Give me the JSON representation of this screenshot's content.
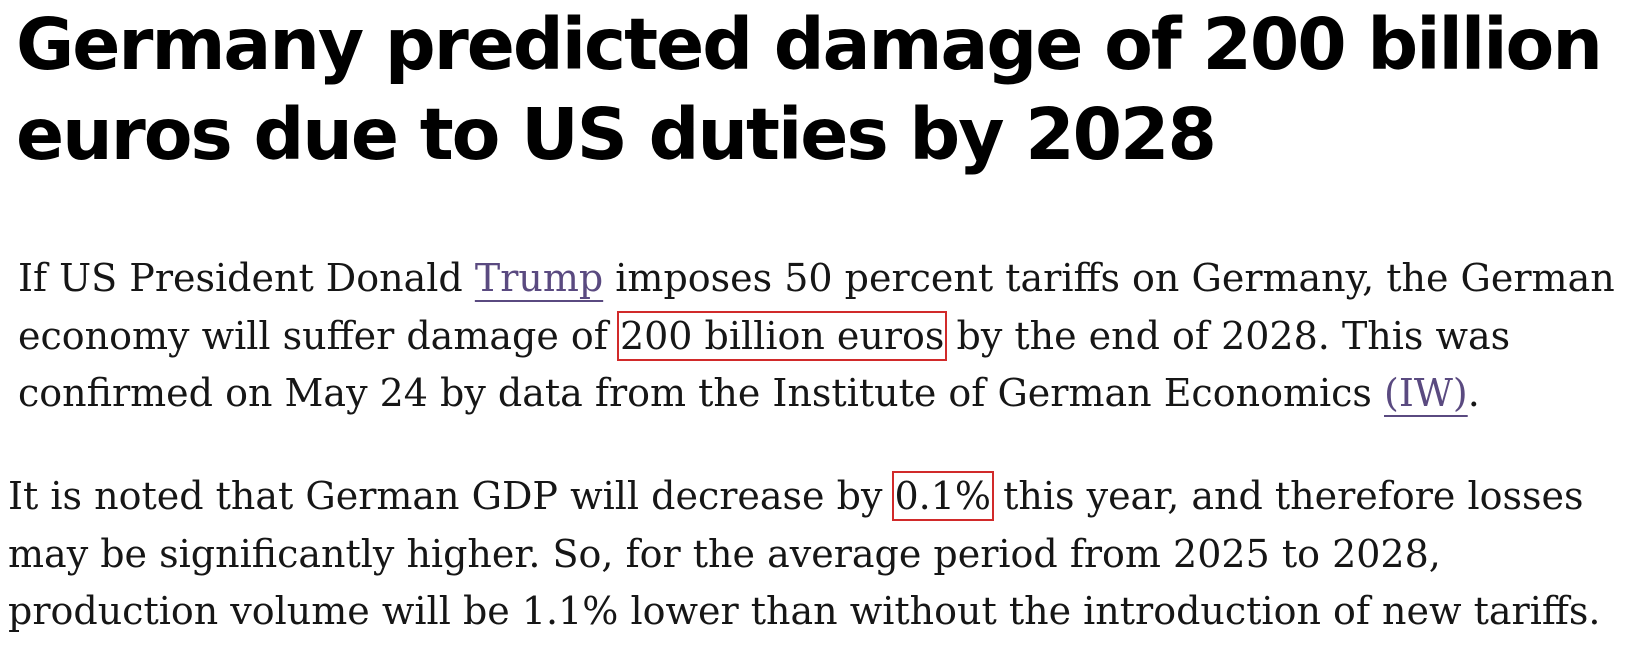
{
  "article": {
    "headline": "Germany predicted damage of 200 billion euros due to US duties by 2028",
    "paragraph1": {
      "before_link": "If US President Donald ",
      "link_trump": "Trump",
      "after_link": " imposes 50 percent tariffs on Germany, the German economy will suffer damage of ",
      "highlight": "200 billion euros",
      "after_highlight": " by the end of 2028. This was confirmed on May 24 by data from the Institute of German Economics ",
      "link_iw": "(IW)",
      "end": "."
    },
    "paragraph2": {
      "before_highlight": "It is noted that German GDP will decrease by ",
      "highlight": "0.1%",
      "after_highlight": " this year, and therefore losses may be significantly higher. So, for the average period from 2025 to 2028, production volume will be 1.1% lower than without the introduction of new tariffs."
    }
  },
  "colors": {
    "link": "#5a4a80",
    "highlight_box": "#d12a2a",
    "text": "#161616"
  }
}
